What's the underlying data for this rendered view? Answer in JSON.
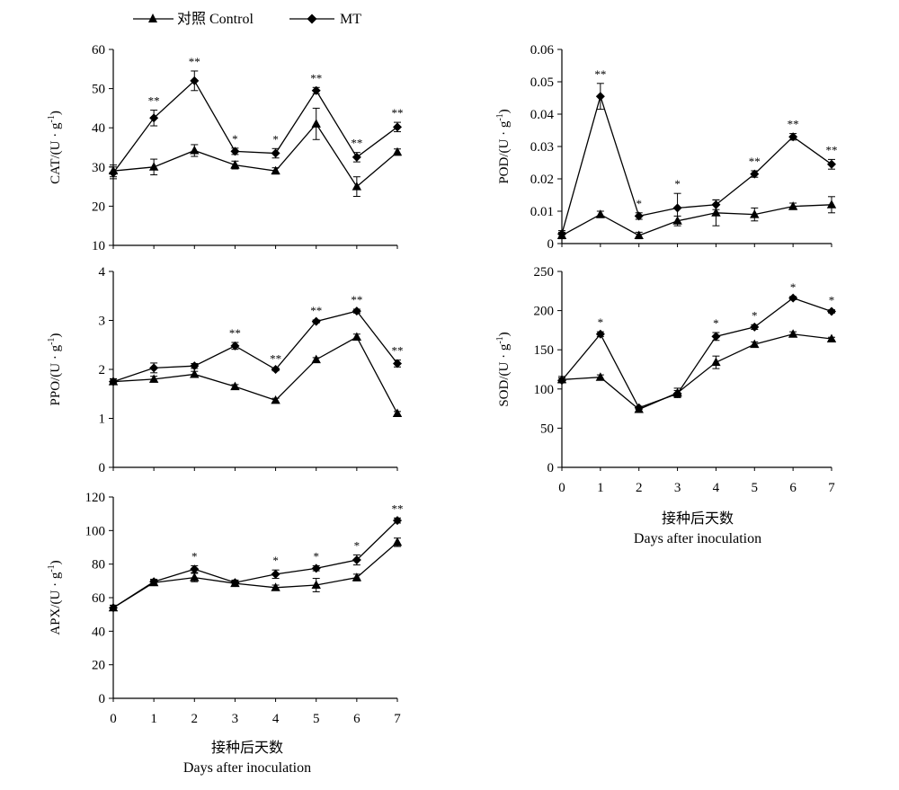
{
  "legend": {
    "control": "对照 Control",
    "mt": "MT"
  },
  "xaxis": {
    "title_cn": "接种后天数",
    "title_en": "Days after inoculation"
  },
  "chart_data": [
    {
      "id": "cat",
      "type": "line",
      "ylabel_main": "CAT/(U · g",
      "ylabel_sup": "-1",
      "ylabel_end": ")",
      "ylim": [
        10,
        60
      ],
      "yticks": [
        10,
        20,
        30,
        40,
        50,
        60
      ],
      "ytick_labels": [
        "10",
        "20",
        "30",
        "40",
        "50",
        "60"
      ],
      "x": [
        0,
        1,
        2,
        3,
        4,
        5,
        6,
        7
      ],
      "xtick_labels": [],
      "series": [
        {
          "name": "对照 Control",
          "marker": "triangle",
          "values": [
            29,
            30,
            34.2,
            30.5,
            29,
            41,
            25,
            33.8
          ],
          "errors": [
            1.5,
            2,
            1.5,
            1,
            0.8,
            4,
            2.5,
            0.8
          ]
        },
        {
          "name": "MT",
          "marker": "diamond",
          "values": [
            28.5,
            42.5,
            52,
            34,
            33.5,
            49.5,
            32.5,
            40.2
          ],
          "errors": [
            1.5,
            2,
            2.5,
            0.8,
            1.2,
            0.8,
            1.2,
            1.2
          ]
        }
      ],
      "significance": [
        "",
        "**",
        "**",
        "*",
        "*",
        "**",
        "**",
        "**"
      ]
    },
    {
      "id": "pod",
      "type": "line",
      "ylabel_main": "POD/(U · g",
      "ylabel_sup": "-1",
      "ylabel_end": ")",
      "ylim": [
        0,
        0.06
      ],
      "yticks": [
        0,
        0.01,
        0.02,
        0.03,
        0.04,
        0.05,
        0.06
      ],
      "ytick_labels": [
        "0",
        "0.01",
        "0.02",
        "0.03",
        "0.04",
        "0.05",
        "0.06"
      ],
      "x": [
        0,
        1,
        2,
        3,
        4,
        5,
        6,
        7
      ],
      "xtick_labels": [],
      "series": [
        {
          "name": "对照 Control",
          "marker": "triangle",
          "values": [
            0.0025,
            0.009,
            0.0025,
            0.007,
            0.0095,
            0.009,
            0.0115,
            0.012
          ],
          "errors": [
            0.001,
            0.001,
            0.001,
            0.0015,
            0.004,
            0.002,
            0.001,
            0.0025
          ]
        },
        {
          "name": "MT",
          "marker": "diamond",
          "values": [
            0.003,
            0.0455,
            0.0085,
            0.011,
            0.012,
            0.0215,
            0.033,
            0.0245
          ],
          "errors": [
            0.001,
            0.004,
            0.001,
            0.0045,
            0.0015,
            0.001,
            0.001,
            0.0015
          ]
        }
      ],
      "significance": [
        "",
        "**",
        "*",
        "*",
        "",
        "**",
        "**",
        "**"
      ]
    },
    {
      "id": "ppo",
      "type": "line",
      "ylabel_main": "PPO/(U · g",
      "ylabel_sup": "-1",
      "ylabel_end": ")",
      "ylim": [
        0,
        4
      ],
      "yticks": [
        0,
        1,
        2,
        3,
        4
      ],
      "ytick_labels": [
        "0",
        "1",
        "2",
        "3",
        "4"
      ],
      "x": [
        0,
        1,
        2,
        3,
        4,
        5,
        6,
        7
      ],
      "xtick_labels": [],
      "series": [
        {
          "name": "对照 Control",
          "marker": "triangle",
          "values": [
            1.75,
            1.8,
            1.9,
            1.65,
            1.37,
            2.2,
            2.66,
            1.1
          ],
          "errors": [
            0.06,
            0.06,
            0.06,
            0.04,
            0.04,
            0.04,
            0.06,
            0.04
          ]
        },
        {
          "name": "MT",
          "marker": "diamond",
          "values": [
            1.75,
            2.03,
            2.07,
            2.48,
            2.0,
            2.98,
            3.19,
            2.12
          ],
          "errors": [
            0.05,
            0.1,
            0.05,
            0.07,
            0.03,
            0.03,
            0.04,
            0.07
          ]
        }
      ],
      "significance": [
        "",
        "",
        "",
        "**",
        "**",
        "**",
        "**",
        "**"
      ]
    },
    {
      "id": "sod",
      "type": "line",
      "ylabel_main": "SOD/(U · g",
      "ylabel_sup": "-1",
      "ylabel_end": ")",
      "ylim": [
        0,
        250
      ],
      "yticks": [
        0,
        50,
        100,
        150,
        200,
        250
      ],
      "ytick_labels": [
        "0",
        "50",
        "100",
        "150",
        "200",
        "250"
      ],
      "x": [
        0,
        1,
        2,
        3,
        4,
        5,
        6,
        7
      ],
      "xtick_labels": [
        "0",
        "1",
        "2",
        "3",
        "4",
        "5",
        "6",
        "7"
      ],
      "series": [
        {
          "name": "对照 Control",
          "marker": "triangle",
          "values": [
            112,
            115,
            74,
            95,
            134,
            157,
            170,
            164
          ],
          "errors": [
            4,
            3,
            3,
            6,
            8,
            3,
            3,
            2
          ]
        },
        {
          "name": "MT",
          "marker": "diamond",
          "values": [
            111,
            170,
            76,
            94,
            167,
            179,
            216,
            199
          ],
          "errors": [
            3,
            3,
            2,
            4,
            5,
            3,
            2,
            2
          ]
        }
      ],
      "significance": [
        "",
        "*",
        "",
        "",
        "*",
        "*",
        "*",
        "*"
      ]
    },
    {
      "id": "apx",
      "type": "line",
      "ylabel_main": "APX/(U · g",
      "ylabel_sup": "-1",
      "ylabel_end": ")",
      "ylim": [
        0,
        120
      ],
      "yticks": [
        0,
        20,
        40,
        60,
        80,
        100,
        120
      ],
      "ytick_labels": [
        "0",
        "20",
        "40",
        "60",
        "80",
        "100",
        "120"
      ],
      "x": [
        0,
        1,
        2,
        3,
        4,
        5,
        6,
        7
      ],
      "xtick_labels": [
        "0",
        "1",
        "2",
        "3",
        "4",
        "5",
        "6",
        "7"
      ],
      "series": [
        {
          "name": "对照 Control",
          "marker": "triangle",
          "values": [
            54,
            69,
            72,
            68.5,
            66,
            67.5,
            72,
            93
          ],
          "errors": [
            1.5,
            1.5,
            2.5,
            1.5,
            1.5,
            4,
            2,
            2.5
          ]
        },
        {
          "name": "MT",
          "marker": "diamond",
          "values": [
            54,
            69.5,
            77,
            69,
            74,
            77.5,
            82.5,
            106
          ],
          "errors": [
            1.5,
            1.5,
            2,
            1.5,
            2.5,
            1.5,
            3,
            1.5
          ]
        }
      ],
      "significance": [
        "",
        "",
        "*",
        "",
        "*",
        "*",
        "*",
        "**"
      ]
    }
  ]
}
